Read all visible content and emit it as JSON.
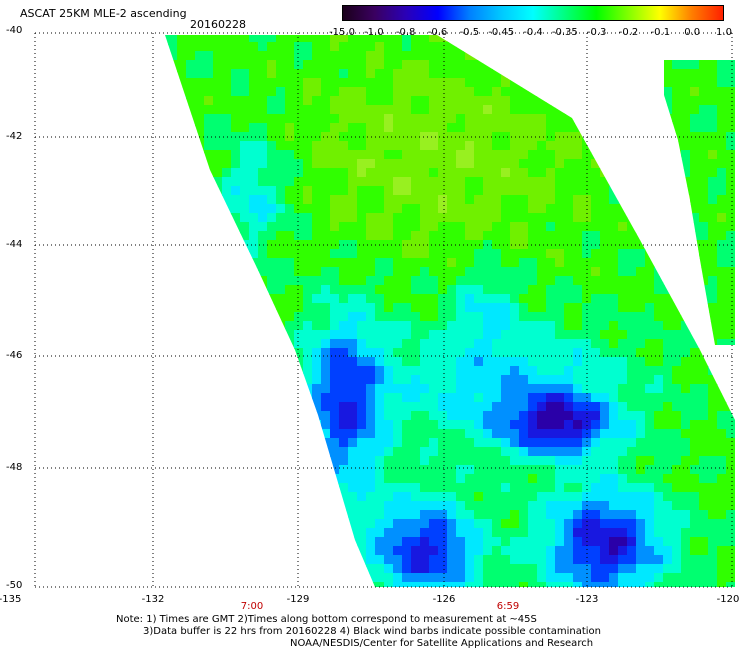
{
  "header": {
    "title": "ASCAT 25KM MLE-2 ascending",
    "date": "20160228"
  },
  "colorbar": {
    "labels": [
      "-15.0",
      "-1.0",
      "-0.8",
      "-0.6",
      "-0.5",
      "-0.45",
      "-0.4",
      "-0.35",
      "-0.3",
      "-0.2",
      "-0.1",
      "0.0",
      "1.0"
    ],
    "colors": [
      "#1a001a",
      "#3a0060",
      "#2a00b8",
      "#0000ff",
      "#0080ff",
      "#00c8ff",
      "#00ffff",
      "#00ff80",
      "#00ff00",
      "#80ff00",
      "#ffff00",
      "#ff8000",
      "#ff2000"
    ]
  },
  "map": {
    "lat_labels": [
      "-40",
      "-42",
      "-44",
      "-46",
      "-48",
      "-50"
    ],
    "lon_labels": [
      "-135",
      "-132",
      "-129",
      "-126",
      "-123",
      "-120"
    ],
    "time_labels": [
      "7:00",
      "6:59"
    ],
    "lon_range": [
      -135,
      -120
    ],
    "lat_range": [
      -50,
      -40
    ]
  },
  "notes": {
    "line1": "Note: 1) Times are GMT 2)Times along bottom correspond to measurement at ~45S",
    "line2": "3)Data buffer is 22 hrs from 20160228 4) Black wind barbs indicate possible contamination",
    "line3": "NOAA/NESDIS/Center for Satellite Applications and Research"
  }
}
